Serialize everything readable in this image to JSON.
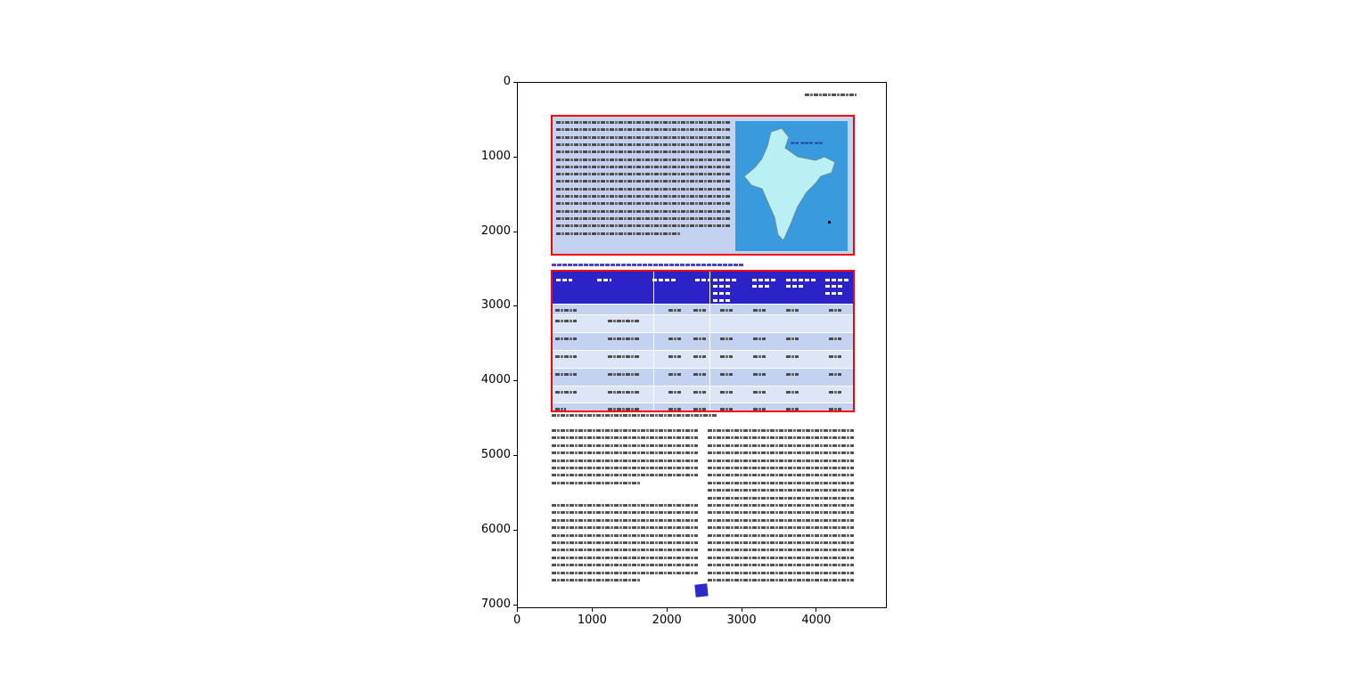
{
  "plot": {
    "x_ticks": [
      "0",
      "1000",
      "2000",
      "3000",
      "4000"
    ],
    "y_ticks": [
      "0",
      "1000",
      "2000",
      "3000",
      "4000",
      "5000",
      "6000",
      "7000"
    ],
    "xlim": [
      0,
      4950
    ],
    "ylim": [
      7050,
      0
    ]
  },
  "colors": {
    "highlight_box": "#ff0000",
    "table_header": "#2b22c8",
    "panel": "#c3d2f0",
    "map_bg": "#3a9ade"
  },
  "document": {
    "map_image": "india-map",
    "stamp": "blue-stamp"
  }
}
